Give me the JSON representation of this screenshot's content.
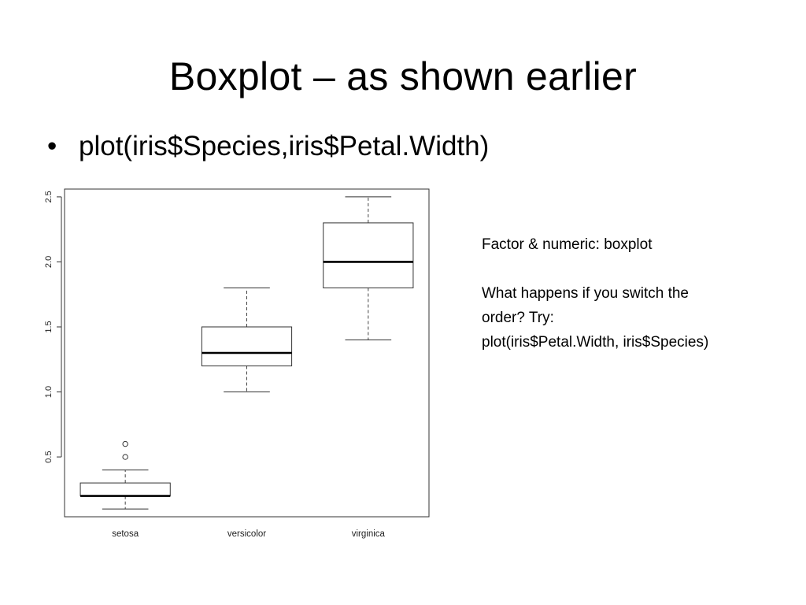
{
  "slide": {
    "title": "Boxplot – as shown earlier",
    "bullet_symbol": "•",
    "bullet_text": "plot(iris$Species,iris$Petal.Width)"
  },
  "note": {
    "line1": "Factor & numeric: boxplot",
    "line2": "What happens if you switch the",
    "line3": "order?  Try:",
    "line4": "plot(iris$Petal.Width, iris$Species)"
  },
  "chart_data": {
    "type": "boxplot",
    "title": "",
    "xlabel": "",
    "ylabel": "",
    "categories": [
      "setosa",
      "versicolor",
      "virginica"
    ],
    "yticks": [
      "0.5",
      "1.0",
      "1.5",
      "2.0",
      "2.5"
    ],
    "ylim": [
      0.04,
      2.56
    ],
    "grid": false,
    "boxes": [
      {
        "name": "setosa",
        "whisker_low": 0.1,
        "q1": 0.2,
        "median": 0.2,
        "q3": 0.3,
        "whisker_high": 0.4,
        "outliers": [
          0.5,
          0.6
        ]
      },
      {
        "name": "versicolor",
        "whisker_low": 1.0,
        "q1": 1.2,
        "median": 1.3,
        "q3": 1.5,
        "whisker_high": 1.8,
        "outliers": []
      },
      {
        "name": "virginica",
        "whisker_low": 1.4,
        "q1": 1.8,
        "median": 2.0,
        "q3": 2.3,
        "whisker_high": 2.5,
        "outliers": []
      }
    ]
  }
}
